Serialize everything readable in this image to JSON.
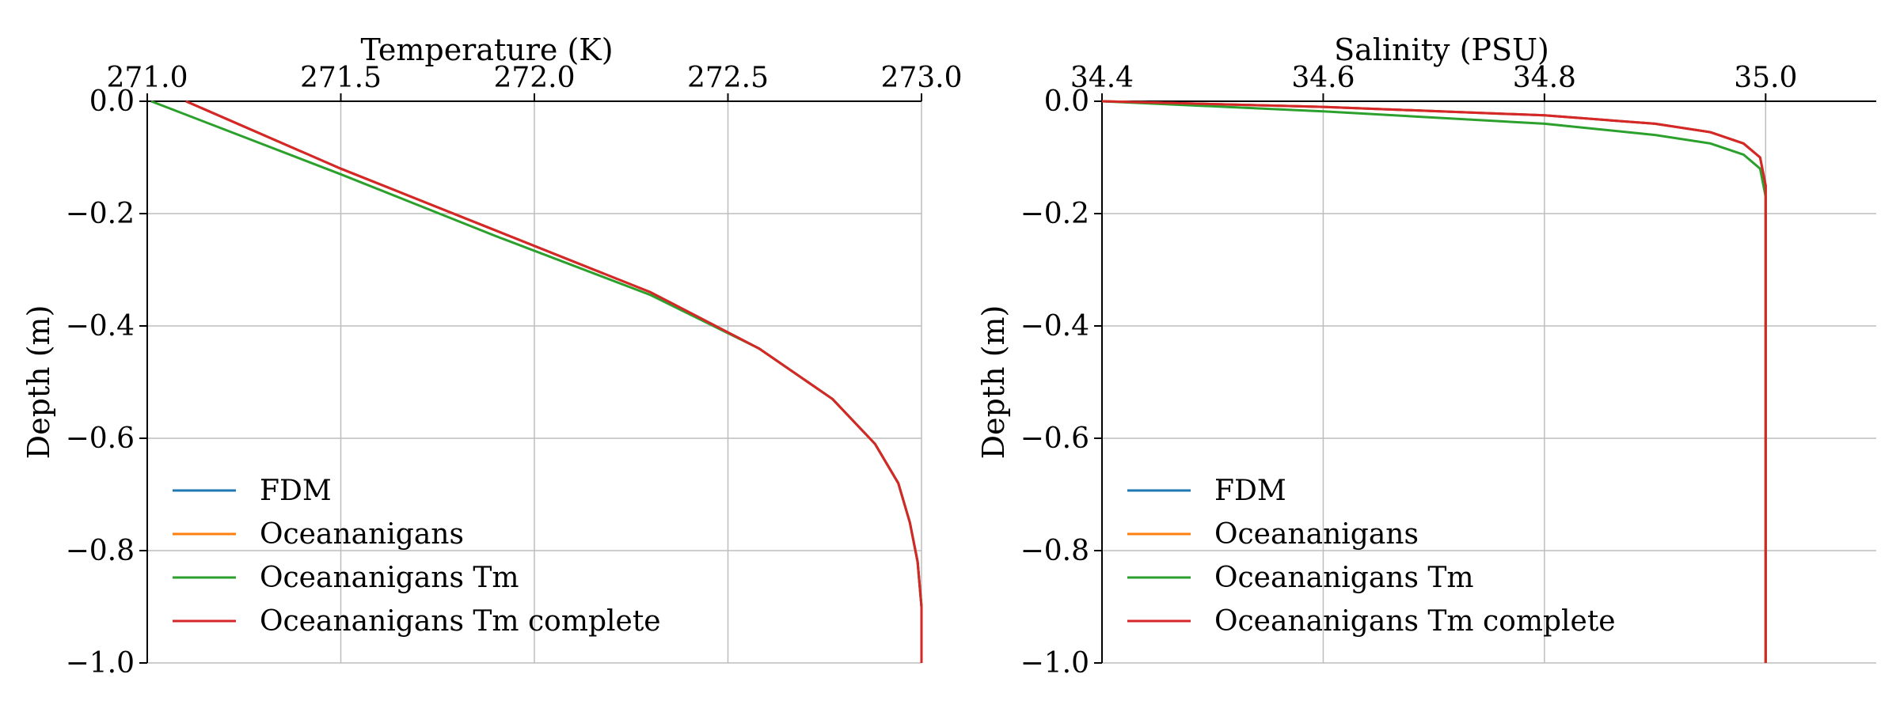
{
  "chart_data": [
    {
      "type": "line",
      "xlabel": "Temperature (K)",
      "ylabel": "Depth (m)",
      "xlim": [
        271.0,
        273.0
      ],
      "ylim": [
        -1.0,
        0.0
      ],
      "x_axis_position": "top",
      "grid": true,
      "legend_location": "lower-left",
      "xticks": [
        "271.0",
        "271.5",
        "272.0",
        "272.5",
        "273.0"
      ],
      "yticks": [
        "0.0",
        "−0.2",
        "−0.4",
        "−0.6",
        "−0.8",
        "−1.0"
      ],
      "series": [
        {
          "name": "FDM",
          "color": "#1f77b4",
          "x": [
            271.1,
            271.5,
            271.9,
            272.3,
            272.58,
            272.77,
            272.88,
            272.94,
            272.97,
            272.99,
            273.0,
            273.0
          ],
          "y": [
            0.0,
            -0.12,
            -0.23,
            -0.34,
            -0.44,
            -0.53,
            -0.61,
            -0.68,
            -0.75,
            -0.82,
            -0.9,
            -1.0
          ]
        },
        {
          "name": "Oceananigans",
          "color": "#ff7f0e",
          "x": [
            271.1,
            271.5,
            271.9,
            272.3,
            272.58,
            272.77,
            272.88,
            272.94,
            272.97,
            272.99,
            273.0,
            273.0
          ],
          "y": [
            0.0,
            -0.12,
            -0.23,
            -0.34,
            -0.44,
            -0.53,
            -0.61,
            -0.68,
            -0.75,
            -0.82,
            -0.9,
            -1.0
          ]
        },
        {
          "name": "Oceananigans Tm",
          "color": "#2ca02c",
          "x": [
            271.01,
            271.5,
            271.9,
            272.3,
            272.58,
            272.77,
            272.88,
            272.94,
            272.97,
            272.99,
            273.0,
            273.0
          ],
          "y": [
            0.0,
            -0.13,
            -0.24,
            -0.345,
            -0.44,
            -0.53,
            -0.61,
            -0.68,
            -0.75,
            -0.82,
            -0.9,
            -1.0
          ]
        },
        {
          "name": "Oceananigans Tm complete",
          "color": "#d62728",
          "x": [
            271.1,
            271.5,
            271.9,
            272.3,
            272.58,
            272.77,
            272.88,
            272.94,
            272.97,
            272.99,
            273.0,
            273.0
          ],
          "y": [
            0.0,
            -0.12,
            -0.23,
            -0.34,
            -0.44,
            -0.53,
            -0.61,
            -0.68,
            -0.75,
            -0.82,
            -0.9,
            -1.0
          ]
        }
      ]
    },
    {
      "type": "line",
      "xlabel": "Salinity (PSU)",
      "ylabel": "Depth (m)",
      "xlim": [
        34.4,
        35.1
      ],
      "ylim": [
        -1.0,
        0.0
      ],
      "x_axis_position": "top",
      "grid": true,
      "legend_location": "lower-left",
      "xticks": [
        "34.4",
        "34.6",
        "34.8",
        "35.0"
      ],
      "yticks": [
        "0.0",
        "−0.2",
        "−0.4",
        "−0.6",
        "−0.8",
        "−1.0"
      ],
      "series": [
        {
          "name": "FDM",
          "color": "#1f77b4",
          "x": [
            34.4,
            34.6,
            34.8,
            34.9,
            34.95,
            34.98,
            34.995,
            35.0,
            35.0
          ],
          "y": [
            0.0,
            -0.01,
            -0.025,
            -0.04,
            -0.055,
            -0.075,
            -0.1,
            -0.15,
            -1.0
          ]
        },
        {
          "name": "Oceananigans",
          "color": "#ff7f0e",
          "x": [
            34.4,
            34.6,
            34.8,
            34.9,
            34.95,
            34.98,
            34.995,
            35.0,
            35.0
          ],
          "y": [
            0.0,
            -0.01,
            -0.025,
            -0.04,
            -0.055,
            -0.075,
            -0.1,
            -0.15,
            -1.0
          ]
        },
        {
          "name": "Oceananigans Tm",
          "color": "#2ca02c",
          "x": [
            34.4,
            34.6,
            34.8,
            34.9,
            34.95,
            34.98,
            34.995,
            35.0,
            35.0
          ],
          "y": [
            0.0,
            -0.018,
            -0.04,
            -0.06,
            -0.075,
            -0.095,
            -0.12,
            -0.17,
            -1.0
          ]
        },
        {
          "name": "Oceananigans Tm complete",
          "color": "#d62728",
          "x": [
            34.4,
            34.6,
            34.8,
            34.9,
            34.95,
            34.98,
            34.995,
            35.0,
            35.0
          ],
          "y": [
            0.0,
            -0.01,
            -0.025,
            -0.04,
            -0.055,
            -0.075,
            -0.1,
            -0.15,
            -1.0
          ]
        }
      ]
    }
  ]
}
